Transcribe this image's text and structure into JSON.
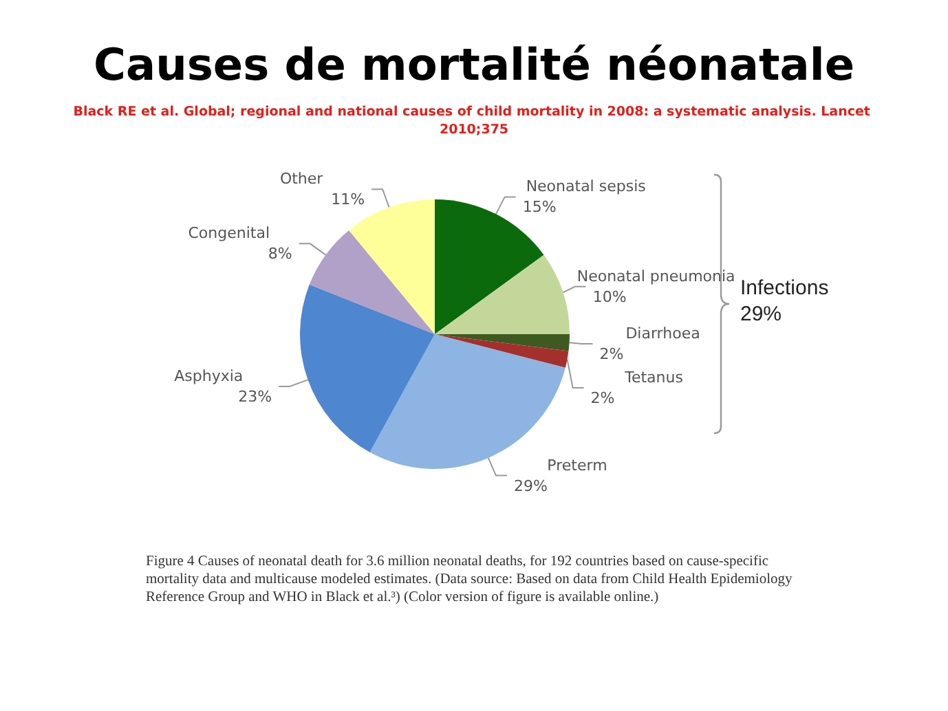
{
  "chart_data": {
    "type": "pie",
    "title": "Causes de mortalité néonatale",
    "subtitle": "Black RE et al. Global; regional and national causes of child mortality in 2008: a systematic analysis. Lancet 2010;375",
    "categories": [
      "Neonatal sepsis",
      "Neonatal pneumonia",
      "Diarrhoea",
      "Tetanus",
      "Preterm",
      "Asphyxia",
      "Congenital",
      "Other"
    ],
    "values": [
      15,
      10,
      2,
      2,
      29,
      23,
      8,
      11
    ],
    "colors": [
      "#0b6a0b",
      "#c4d79b",
      "#3c5a22",
      "#a5302b",
      "#8db4e2",
      "#4f86d0",
      "#b1a0c7",
      "#ffff99"
    ],
    "value_labels": [
      "15%",
      "10%",
      "2%",
      "2%",
      "29%",
      "23%",
      "8%",
      "11%"
    ],
    "legend": false,
    "annotations": [
      "Infections\n29%",
      "Figure 4 Causes of neonatal death for 3.6 million neonatal deaths, for 192 countries based on cause-specific mortality data and multicause modeled estimates. (Data source: Based on data from Child Health Epidemiology Reference Group and WHO in Black et al.³) (Color version of figure is available online.)"
    ]
  }
}
